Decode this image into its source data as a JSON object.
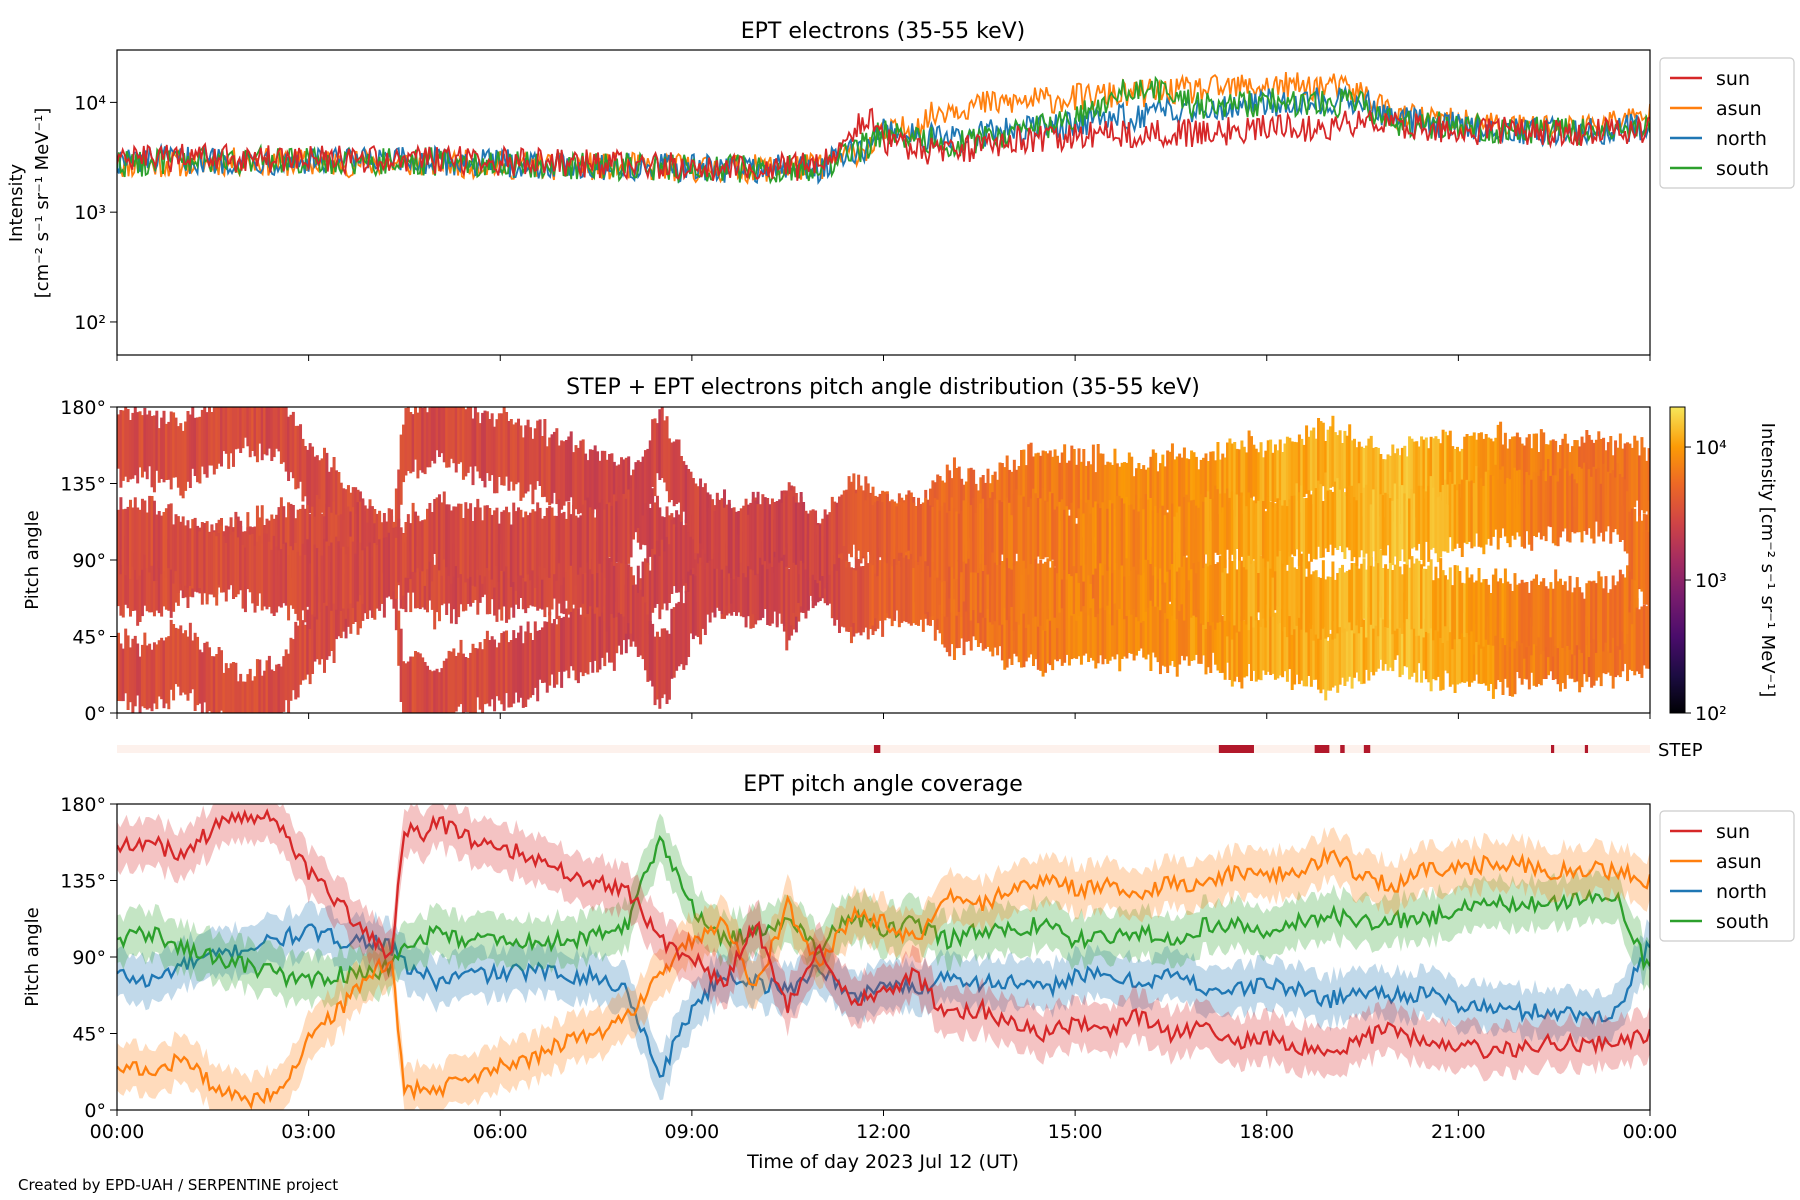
{
  "footer": "Created by EPD-UAH / SERPENTINE project",
  "colors": {
    "sun": "#d62728",
    "asun": "#ff7f0e",
    "north": "#1f77b4",
    "south": "#2ca02c"
  },
  "chart_data": [
    {
      "type": "line",
      "title": "EPT electrons (35-55 keV)",
      "ylabel_line1": "Intensity",
      "ylabel_line2": "[cm⁻² s⁻¹ sr⁻¹ MeV⁻¹]",
      "yscale": "log",
      "ylim": [
        50,
        30000
      ],
      "yticks": [
        "10²",
        "10³",
        "10⁴"
      ],
      "ytick_values": [
        100,
        1000,
        10000
      ],
      "xlim_hours": [
        0,
        24
      ],
      "legend_position": "right-outside-top",
      "series": [
        {
          "name": "sun",
          "key": "sun",
          "x": [
            0,
            1,
            2,
            3,
            4,
            5,
            6,
            7,
            8,
            9,
            10,
            11,
            11.8,
            12,
            12.5,
            13,
            14,
            15,
            16,
            17,
            18,
            19,
            19.5,
            20,
            21,
            22,
            23,
            24
          ],
          "y": [
            3000,
            3100,
            3100,
            3000,
            3000,
            3000,
            2900,
            2800,
            2700,
            2600,
            2600,
            2600,
            7000,
            4500,
            3800,
            3400,
            4500,
            5000,
            5200,
            5300,
            5800,
            6000,
            6500,
            6200,
            5500,
            5500,
            5200,
            5500
          ]
        },
        {
          "name": "asun",
          "key": "asun",
          "x": [
            0,
            1,
            2,
            3,
            4,
            5,
            6,
            7,
            8,
            9,
            10,
            11,
            11.8,
            12,
            12.5,
            13,
            14,
            15,
            16,
            17,
            18,
            19,
            19.5,
            20,
            21,
            22,
            23,
            24
          ],
          "y": [
            2700,
            2800,
            2900,
            2800,
            2800,
            2800,
            2700,
            2600,
            2600,
            2500,
            2500,
            2600,
            4000,
            5000,
            6000,
            9000,
            10000,
            11000,
            12000,
            13000,
            14000,
            14000,
            12000,
            7500,
            6500,
            6000,
            6000,
            7500
          ]
        },
        {
          "name": "north",
          "key": "north",
          "x": [
            0,
            1,
            2,
            3,
            4,
            5,
            6,
            7,
            8,
            9,
            10,
            11,
            11.8,
            12,
            12.5,
            13,
            14,
            15,
            16,
            17,
            18,
            19,
            19.5,
            20,
            21,
            22,
            23,
            24
          ],
          "y": [
            2900,
            3000,
            3000,
            2900,
            2900,
            2900,
            2800,
            2700,
            2600,
            2500,
            2500,
            2500,
            4000,
            6000,
            5000,
            4500,
            5500,
            6500,
            7500,
            9000,
            10000,
            10500,
            10000,
            7000,
            6000,
            5500,
            5500,
            6000
          ]
        },
        {
          "name": "south",
          "key": "south",
          "x": [
            0,
            1,
            2,
            3,
            4,
            5,
            6,
            7,
            8,
            9,
            10,
            11,
            11.8,
            12,
            12.5,
            13,
            14,
            15,
            16,
            17,
            18,
            19,
            19.5,
            20,
            21,
            22,
            23,
            24
          ],
          "y": [
            2800,
            2900,
            3000,
            2900,
            2900,
            2900,
            2800,
            2700,
            2600,
            2500,
            2500,
            2500,
            4200,
            5500,
            4800,
            4200,
            5000,
            7000,
            14000,
            9000,
            10000,
            10000,
            9500,
            6500,
            6000,
            5500,
            5500,
            6000
          ]
        }
      ]
    },
    {
      "type": "heatmap",
      "title": "STEP + EPT electrons pitch angle distribution (35-55 keV)",
      "ylabel": "Pitch angle",
      "ylim": [
        0,
        180
      ],
      "yticks": [
        "0°",
        "45°",
        "90°",
        "135°",
        "180°"
      ],
      "xlim_hours": [
        0,
        24
      ],
      "colorbar": {
        "label": "Intensity [cm⁻² s⁻¹ sr⁻¹ MeV⁻¹]",
        "scale": "log",
        "range": [
          100,
          20000
        ],
        "ticks": [
          "10²",
          "10³",
          "10⁴"
        ],
        "tick_values": [
          100,
          1000,
          10000
        ]
      },
      "intensity_by_hour": [
        3000,
        3100,
        3100,
        3000,
        3000,
        3000,
        2900,
        2800,
        2700,
        2600,
        2600,
        2600,
        4500,
        5000,
        6000,
        7000,
        8000,
        9000,
        11000,
        12000,
        13000,
        11000,
        7000,
        6000,
        6000
      ]
    },
    {
      "type": "bar",
      "label": "STEP",
      "xlim_hours": [
        0,
        24
      ],
      "marker_color": "#b2182b",
      "background_color": "#fdf1ec",
      "segments_hours": [
        [
          11.85,
          11.95
        ],
        [
          17.25,
          17.8
        ],
        [
          18.75,
          18.98
        ],
        [
          19.15,
          19.22
        ],
        [
          19.52,
          19.62
        ],
        [
          22.45,
          22.5
        ],
        [
          22.98,
          23.03
        ]
      ]
    },
    {
      "type": "line",
      "title": "EPT pitch angle coverage",
      "ylabel": "Pitch angle",
      "xlabel": "Time of day 2023 Jul 12 (UT)",
      "ylim": [
        0,
        180
      ],
      "yticks": [
        "0°",
        "45°",
        "90°",
        "135°",
        "180°"
      ],
      "xlim_hours": [
        0,
        24
      ],
      "xticks": [
        "00:00",
        "03:00",
        "06:00",
        "09:00",
        "12:00",
        "15:00",
        "18:00",
        "21:00",
        "00:00"
      ],
      "band_halfwidth_deg": 14,
      "legend_position": "right-outside-top",
      "series": [
        {
          "name": "sun",
          "key": "sun",
          "x": [
            0,
            0.5,
            1,
            1.5,
            2,
            2.5,
            3,
            3.5,
            4,
            4.3,
            4.5,
            4.8,
            5,
            5.5,
            6,
            6.5,
            7,
            7.5,
            8,
            8.5,
            9,
            9.5,
            10,
            10.5,
            11,
            11.5,
            12,
            12.5,
            13,
            13.5,
            14,
            14.5,
            15,
            15.5,
            16,
            16.5,
            17,
            17.5,
            18,
            18.5,
            19,
            19.5,
            20,
            20.5,
            21,
            21.5,
            22,
            22.5,
            23,
            23.5,
            24
          ],
          "y": [
            155,
            158,
            150,
            165,
            175,
            170,
            140,
            120,
            100,
            90,
            165,
            160,
            170,
            160,
            155,
            150,
            140,
            135,
            130,
            100,
            90,
            75,
            110,
            60,
            95,
            65,
            70,
            80,
            55,
            60,
            50,
            45,
            50,
            48,
            55,
            45,
            50,
            40,
            42,
            38,
            30,
            42,
            48,
            38,
            38,
            35,
            36,
            40,
            38,
            40,
            45
          ]
        },
        {
          "name": "asun",
          "key": "asun",
          "x": [
            0,
            0.5,
            1,
            1.5,
            2,
            2.5,
            3,
            3.5,
            4,
            4.3,
            4.5,
            4.8,
            5,
            5.5,
            6,
            6.5,
            7,
            7.5,
            8,
            8.5,
            9,
            9.5,
            10,
            10.5,
            11,
            11.5,
            12,
            12.5,
            13,
            13.5,
            14,
            14.5,
            15,
            15.5,
            16,
            16.5,
            17,
            17.5,
            18,
            18.5,
            19,
            19.5,
            20,
            20.5,
            21,
            21.5,
            22,
            22.5,
            23,
            23.5,
            24
          ],
          "y": [
            25,
            22,
            30,
            15,
            5,
            10,
            40,
            60,
            80,
            90,
            10,
            15,
            10,
            20,
            25,
            30,
            40,
            45,
            55,
            80,
            100,
            110,
            70,
            120,
            85,
            115,
            110,
            100,
            125,
            120,
            130,
            135,
            130,
            132,
            125,
            135,
            130,
            140,
            138,
            142,
            150,
            138,
            132,
            142,
            142,
            145,
            144,
            140,
            142,
            140,
            135
          ]
        },
        {
          "name": "north",
          "key": "north",
          "x": [
            0,
            0.5,
            1,
            1.5,
            2,
            2.5,
            3,
            3.5,
            4,
            4.3,
            4.5,
            4.8,
            5,
            5.5,
            6,
            6.5,
            7,
            7.5,
            8,
            8.5,
            9,
            9.5,
            10,
            10.5,
            11,
            11.5,
            12,
            12.5,
            13,
            13.5,
            14,
            14.5,
            15,
            15.5,
            16,
            16.5,
            17,
            17.5,
            18,
            18.5,
            19,
            19.5,
            20,
            20.5,
            21,
            21.5,
            22,
            22.5,
            23,
            23.5,
            24
          ],
          "y": [
            80,
            75,
            85,
            90,
            95,
            100,
            105,
            100,
            100,
            95,
            85,
            80,
            75,
            80,
            80,
            82,
            80,
            78,
            70,
            20,
            60,
            80,
            75,
            70,
            85,
            65,
            75,
            70,
            80,
            75,
            75,
            70,
            80,
            78,
            75,
            80,
            72,
            70,
            75,
            70,
            65,
            70,
            68,
            68,
            62,
            60,
            58,
            58,
            55,
            58,
            100
          ]
        },
        {
          "name": "south",
          "key": "south",
          "x": [
            0,
            0.5,
            1,
            1.5,
            2,
            2.5,
            3,
            3.5,
            4,
            4.3,
            4.5,
            4.8,
            5,
            5.5,
            6,
            6.5,
            7,
            7.5,
            8,
            8.5,
            9,
            9.5,
            10,
            10.5,
            11,
            11.5,
            12,
            12.5,
            13,
            13.5,
            14,
            14.5,
            15,
            15.5,
            16,
            16.5,
            17,
            17.5,
            18,
            18.5,
            19,
            19.5,
            20,
            20.5,
            21,
            21.5,
            22,
            22.5,
            23,
            23.5,
            24
          ],
          "y": [
            100,
            105,
            95,
            90,
            85,
            80,
            75,
            80,
            80,
            85,
            95,
            100,
            105,
            100,
            100,
            98,
            100,
            102,
            110,
            160,
            120,
            100,
            105,
            110,
            95,
            115,
            105,
            110,
            100,
            105,
            105,
            110,
            100,
            102,
            105,
            100,
            108,
            110,
            105,
            110,
            115,
            110,
            112,
            112,
            118,
            120,
            122,
            122,
            125,
            122,
            80
          ]
        }
      ]
    }
  ]
}
